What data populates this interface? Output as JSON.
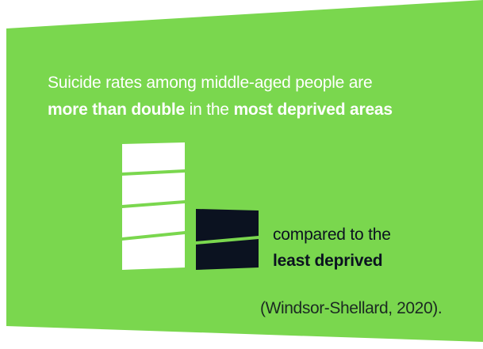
{
  "colors": {
    "background_green": "#7ad74e",
    "white": "#ffffff",
    "dark_navy": "#0b1220"
  },
  "headline": {
    "line1": "Suicide rates among middle-aged people are",
    "line2_emphasis_1": "more than double",
    "line2_plain": " in the ",
    "line2_emphasis_2": "most deprived areas"
  },
  "comparison": {
    "line1": "compared to the",
    "line2_emphasis": "least deprived"
  },
  "citation": "(Windsor-Shellard, 2020).",
  "icons": {
    "most_deprived_bar": "white-stacked-bar-icon",
    "least_deprived_bar": "dark-stacked-bar-icon"
  }
}
